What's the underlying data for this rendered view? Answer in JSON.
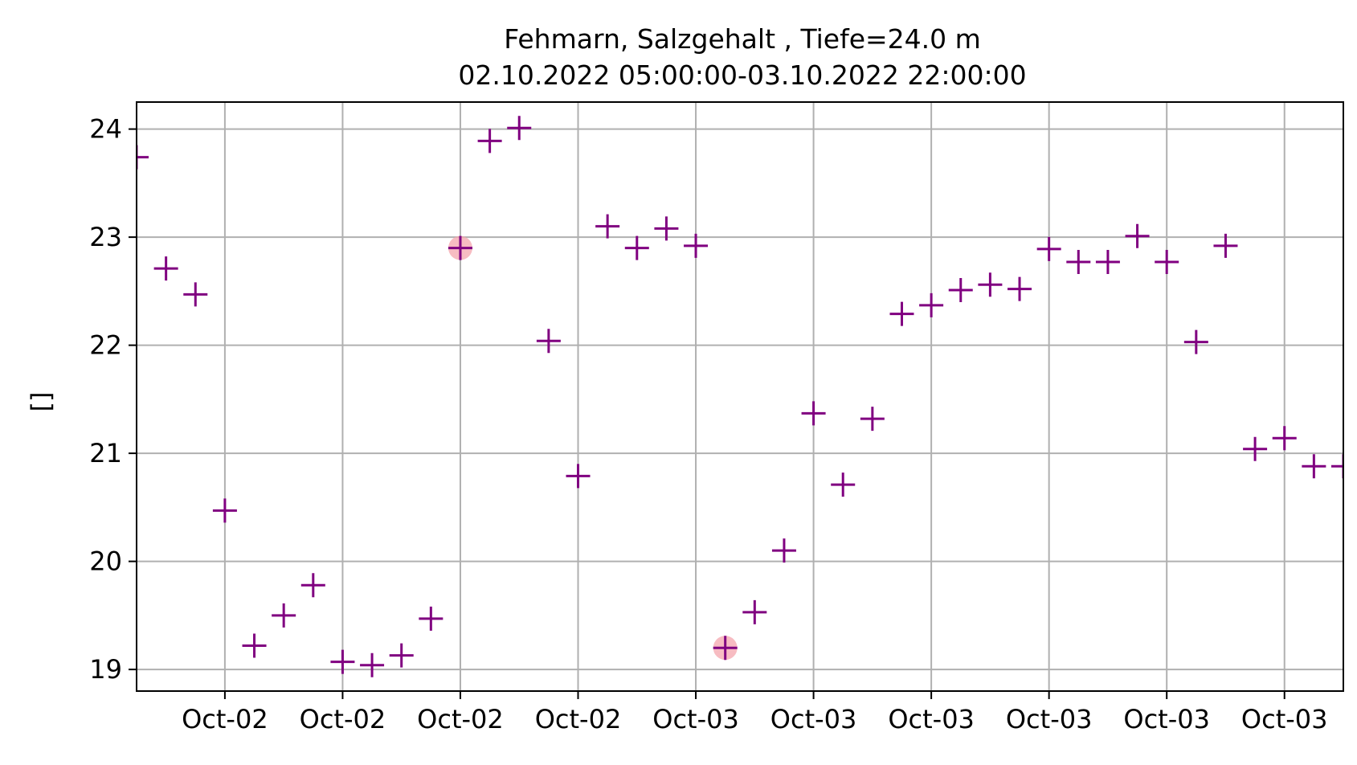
{
  "chart_data": {
    "type": "scatter",
    "title_line1": "Fehmarn, Salzgehalt , Tiefe=24.0 m",
    "title_line2": "02.10.2022 05:00:00-03.10.2022 22:00:00",
    "xlabel": "",
    "ylabel": "[]",
    "x_axis": {
      "type": "datetime",
      "start": "2022-10-02 05:00:00",
      "end": "2022-10-03 22:00:00",
      "ticks": [
        {
          "value": "2022-10-02 08:00",
          "label": "Oct-02"
        },
        {
          "value": "2022-10-02 12:00",
          "label": "Oct-02"
        },
        {
          "value": "2022-10-02 16:00",
          "label": "Oct-02"
        },
        {
          "value": "2022-10-02 20:00",
          "label": "Oct-02"
        },
        {
          "value": "2022-10-03 00:00",
          "label": "Oct-03"
        },
        {
          "value": "2022-10-03 04:00",
          "label": "Oct-03"
        },
        {
          "value": "2022-10-03 08:00",
          "label": "Oct-03"
        },
        {
          "value": "2022-10-03 12:00",
          "label": "Oct-03"
        },
        {
          "value": "2022-10-03 16:00",
          "label": "Oct-03"
        },
        {
          "value": "2022-10-03 20:00",
          "label": "Oct-03"
        }
      ]
    },
    "ylim": [
      18.8,
      24.25
    ],
    "y_ticks": [
      19,
      20,
      21,
      22,
      23,
      24
    ],
    "grid": true,
    "marker": "+",
    "marker_color": "#800080",
    "highlight_color": "#f4a6ad",
    "series": [
      {
        "points": [
          {
            "x": "2022-10-02 05:00",
            "y": 23.74
          },
          {
            "x": "2022-10-02 06:00",
            "y": 22.71
          },
          {
            "x": "2022-10-02 07:00",
            "y": 22.47
          },
          {
            "x": "2022-10-02 08:00",
            "y": 20.47
          },
          {
            "x": "2022-10-02 09:00",
            "y": 19.22
          },
          {
            "x": "2022-10-02 10:00",
            "y": 19.5
          },
          {
            "x": "2022-10-02 11:00",
            "y": 19.78
          },
          {
            "x": "2022-10-02 12:00",
            "y": 19.07
          },
          {
            "x": "2022-10-02 13:00",
            "y": 19.04
          },
          {
            "x": "2022-10-02 14:00",
            "y": 19.13
          },
          {
            "x": "2022-10-02 15:00",
            "y": 19.47
          },
          {
            "x": "2022-10-02 16:00",
            "y": 22.9,
            "highlight": true
          },
          {
            "x": "2022-10-02 17:00",
            "y": 23.89
          },
          {
            "x": "2022-10-02 18:00",
            "y": 24.01
          },
          {
            "x": "2022-10-02 19:00",
            "y": 22.04
          },
          {
            "x": "2022-10-02 20:00",
            "y": 20.79
          },
          {
            "x": "2022-10-02 21:00",
            "y": 23.1
          },
          {
            "x": "2022-10-02 22:00",
            "y": 22.9
          },
          {
            "x": "2022-10-02 23:00",
            "y": 23.08
          },
          {
            "x": "2022-10-03 00:00",
            "y": 22.92
          },
          {
            "x": "2022-10-03 01:00",
            "y": 19.2,
            "highlight": true
          },
          {
            "x": "2022-10-03 02:00",
            "y": 19.53
          },
          {
            "x": "2022-10-03 03:00",
            "y": 20.1
          },
          {
            "x": "2022-10-03 04:00",
            "y": 21.37
          },
          {
            "x": "2022-10-03 05:00",
            "y": 20.71
          },
          {
            "x": "2022-10-03 06:00",
            "y": 21.32
          },
          {
            "x": "2022-10-03 07:00",
            "y": 22.29
          },
          {
            "x": "2022-10-03 08:00",
            "y": 22.37
          },
          {
            "x": "2022-10-03 09:00",
            "y": 22.51
          },
          {
            "x": "2022-10-03 10:00",
            "y": 22.56
          },
          {
            "x": "2022-10-03 11:00",
            "y": 22.52
          },
          {
            "x": "2022-10-03 12:00",
            "y": 22.89
          },
          {
            "x": "2022-10-03 13:00",
            "y": 22.77
          },
          {
            "x": "2022-10-03 14:00",
            "y": 22.77
          },
          {
            "x": "2022-10-03 15:00",
            "y": 23.01
          },
          {
            "x": "2022-10-03 16:00",
            "y": 22.77
          },
          {
            "x": "2022-10-03 17:00",
            "y": 22.03
          },
          {
            "x": "2022-10-03 18:00",
            "y": 22.92
          },
          {
            "x": "2022-10-03 19:00",
            "y": 21.04
          },
          {
            "x": "2022-10-03 20:00",
            "y": 21.14
          },
          {
            "x": "2022-10-03 21:00",
            "y": 20.88
          },
          {
            "x": "2022-10-03 22:00",
            "y": 20.88
          }
        ]
      }
    ]
  }
}
